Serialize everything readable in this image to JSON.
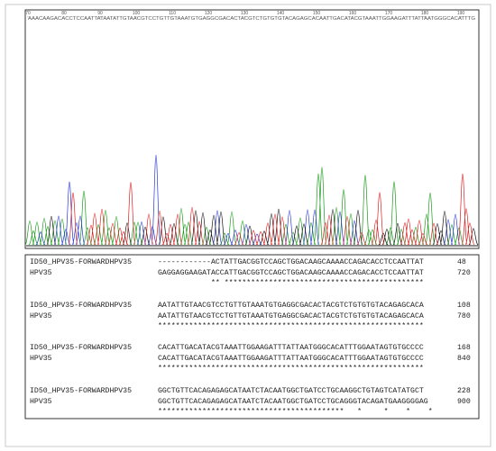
{
  "ruler": {
    "labels": [
      70,
      80,
      90,
      100,
      110,
      120,
      130,
      140,
      150,
      160,
      170,
      180,
      190
    ]
  },
  "base_calls": "AAACAAGACACCTCCAATTATAATATTGTAACGTCCTGTTGTAAATGTGAGGCGACACTACGTCTGTGTGTACAGAGCACAATTGACATACGTAAATTGGAAGATTTATTAATGGGCACATTTG",
  "alignment": {
    "blocks": [
      {
        "rows": [
          {
            "name": "ID50_HPV35-FORWARDHPV35",
            "sequence": "------------ACTATTGACGGTCCAGCTGGACAAGCAAAACCAGACACCTCCAATTAT",
            "position": 48
          },
          {
            "name": "HPV35",
            "sequence": "GAGGAGGAAGATACCATTGACGGTCCAGCTGGACAAGCAAAACCAGACACCTCCAATTAT",
            "position": 720
          }
        ],
        "conservation": "            ** *********************************************"
      },
      {
        "rows": [
          {
            "name": "ID50_HPV35-FORWARDHPV35",
            "sequence": "AATATTGTAACGTCCTGTTGTAAATGTGAGGCGACACTACGTCTGTGTGTACAGAGCACA",
            "position": 108
          },
          {
            "name": "HPV35",
            "sequence": "AATATTGTAACGTCCTGTTGTAAATGTGAGGCGACACTACGTCTGTGTGTACAGAGCACA",
            "position": 780
          }
        ],
        "conservation": "************************************************************"
      },
      {
        "rows": [
          {
            "name": "ID50_HPV35-FORWARDHPV35",
            "sequence": "CACATTGACATACGTAAATTGGAAGATTTATTAATGGGCACATTTGGAATAGTGTGCCCC",
            "position": 168
          },
          {
            "name": "HPV35",
            "sequence": "CACATTGACATACGTAAATTGGAAGATTTATTAATGGGCACATTTGGAATAGTGTGCCCC",
            "position": 840
          }
        ],
        "conservation": "************************************************************"
      },
      {
        "rows": [
          {
            "name": "ID50_HPV35-FORWARDHPV35",
            "sequence": "GGCTGTTCACAGAGAGCATAATCTACAATGGCTGATCCTGCAAGGCTGTAGTCATATGCT",
            "position": 228
          },
          {
            "name": "HPV35",
            "sequence": "GGCTGTTCACAGAGAGCATAATCTACAATGGCTGATCCTGCAGGGTACAGATGAAGGGGAG",
            "position": 900
          }
        ],
        "conservation": "******************************************   *     *    *    *"
      }
    ]
  }
}
